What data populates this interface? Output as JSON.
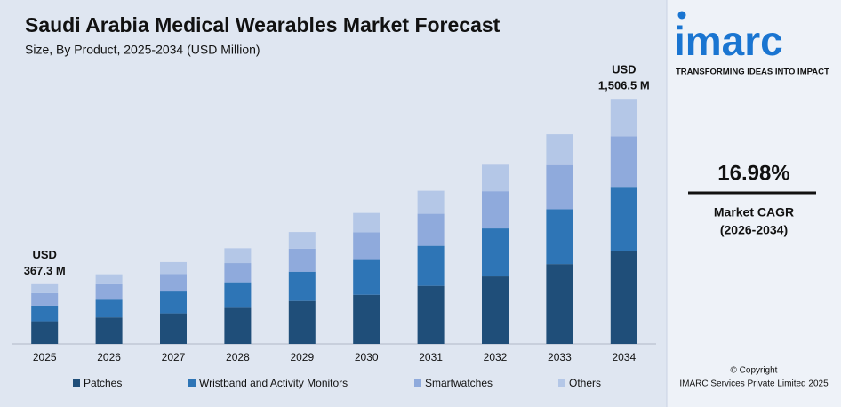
{
  "chart_data": {
    "type": "stacked_bar",
    "title": "Saudi Arabia Medical Wearables Market Forecast",
    "subtitle": "Size, By Product, 2025-2034 (USD Million)",
    "categories": [
      "2025",
      "2026",
      "2027",
      "2028",
      "2029",
      "2030",
      "2031",
      "2032",
      "2033",
      "2034"
    ],
    "series": [
      {
        "name": "Patches",
        "color": "#1f4e79",
        "values": [
          139,
          163,
          188,
          222,
          264,
          302,
          357,
          415,
          491,
          569
        ]
      },
      {
        "name": "Wristband and Activity Monitors",
        "color": "#2e75b6",
        "values": [
          97,
          109,
          134,
          157,
          180,
          214,
          246,
          295,
          337,
          397
        ]
      },
      {
        "name": "Smartwatches",
        "color": "#8faadc",
        "values": [
          76,
          95,
          107,
          118,
          141,
          170,
          197,
          229,
          272,
          311
        ]
      },
      {
        "name": "Others",
        "color": "#b4c7e7",
        "values": [
          55,
          61,
          74,
          91,
          103,
          119,
          142,
          163,
          189,
          230
        ]
      }
    ],
    "ylim": [
      0,
      1590
    ],
    "total_labels": [
      {
        "category": "2025",
        "value": 367.3,
        "label": [
          "USD",
          "367.3 M"
        ]
      },
      {
        "category": "2034",
        "value": 1506.5,
        "label": [
          "USD",
          "1,506.5 M"
        ]
      }
    ]
  },
  "sidebar": {
    "logo": "imarc",
    "tagline": "TRANSFORMING IDEAS INTO IMPACT",
    "cagr": "16.98%",
    "cagr_label": "Market CAGR",
    "cagr_period": "(2026-2034)",
    "copyright": "© Copyright",
    "company": "IMARC Services Private Limited 2025"
  }
}
